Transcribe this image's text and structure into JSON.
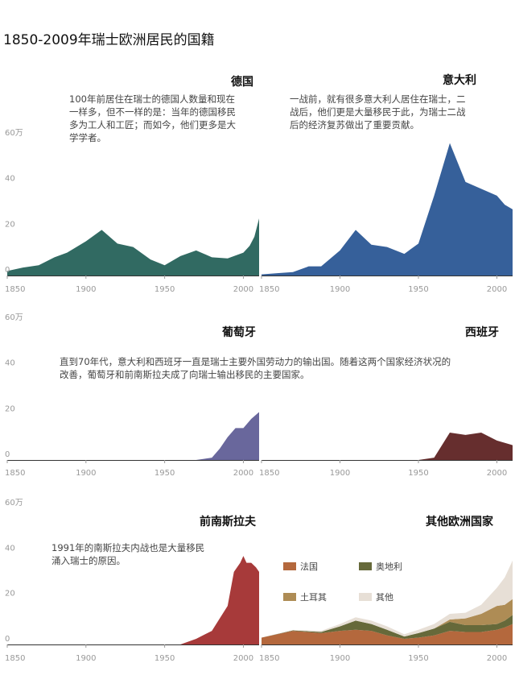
{
  "title": "1850-2009年瑞士欧洲居民的国籍",
  "colors": {
    "germany": "#316a62",
    "italy": "#36609a",
    "portugal": "#69679c",
    "spain": "#662e2e",
    "yugoslavia": "#a73a3a",
    "france": "#b4683d",
    "austria": "#66693a",
    "turkey": "#ae8c55",
    "others": "#e7dfd6"
  },
  "chart_data": [
    {
      "type": "area",
      "id": "germany",
      "title": "德国",
      "note": [
        "100年前居住在瑞士的德国人数量和现在",
        "一样多，但不一样的是：当年的德国移民",
        "多为工人和工匠；而如今，他们更多是大",
        "学学者。"
      ],
      "y_unit": "万",
      "yticks": [
        "0",
        "20",
        "40",
        "60万"
      ],
      "ylim": [
        0,
        60
      ],
      "xlim": [
        1850,
        2010
      ],
      "xticks": [
        "1850",
        "1900",
        "1950",
        "2000"
      ],
      "x": [
        1850,
        1860,
        1870,
        1880,
        1888,
        1900,
        1910,
        1920,
        1930,
        1941,
        1950,
        1960,
        1970,
        1980,
        1990,
        2000,
        2004,
        2007,
        2010
      ],
      "values": [
        2,
        3.5,
        4.5,
        8,
        10,
        15,
        20,
        14,
        12.5,
        7,
        4.5,
        8.5,
        11,
        8,
        7.5,
        10,
        13,
        17,
        25
      ]
    },
    {
      "type": "area",
      "id": "italy",
      "title": "意大利",
      "note": [
        "一战前，就有很多意大利人居住在瑞士，二",
        "战后，他们更是大量移民于此，为瑞士二战",
        "后的经济复苏做出了重要贡献。"
      ],
      "ylim": [
        0,
        60
      ],
      "xlim": [
        1850,
        2010
      ],
      "xticks": [
        "1850",
        "1900",
        "1950",
        "2000"
      ],
      "x": [
        1850,
        1860,
        1870,
        1880,
        1888,
        1900,
        1910,
        1920,
        1930,
        1941,
        1950,
        1960,
        1970,
        1980,
        1990,
        2000,
        2005,
        2010
      ],
      "values": [
        0.5,
        1,
        1.5,
        4,
        4,
        11,
        20,
        13.5,
        12.5,
        9.5,
        14,
        35,
        58,
        41,
        38,
        35,
        31,
        29
      ]
    },
    {
      "type": "area",
      "id": "portugal",
      "title": "葡萄牙",
      "yticks": [
        "0",
        "20",
        "40",
        "60万"
      ],
      "ylim": [
        0,
        60
      ],
      "xlim": [
        1850,
        2010
      ],
      "xticks": [
        "1850",
        "1900",
        "1950",
        "2000"
      ],
      "x": [
        1850,
        1970,
        1980,
        1985,
        1990,
        1995,
        2000,
        2005,
        2010
      ],
      "values": [
        0,
        0,
        1,
        5,
        10,
        14,
        14,
        18,
        21
      ]
    },
    {
      "type": "area",
      "id": "spain",
      "title": "西班牙",
      "note": [
        "直到70年代，意大利和西班牙一直是瑞士主要外国劳动力的输出国。随着这两个国家经济状况的",
        "改善，葡萄牙和前南斯拉夫成了向瑞士输出移民的主要国家。"
      ],
      "ylim": [
        0,
        60
      ],
      "xlim": [
        1850,
        2010
      ],
      "xticks": [
        "1850",
        "1900",
        "1950",
        "2000"
      ],
      "x": [
        1850,
        1950,
        1960,
        1970,
        1980,
        1990,
        2000,
        2010
      ],
      "values": [
        0,
        0,
        1,
        12,
        11,
        12,
        8.5,
        6.5
      ]
    },
    {
      "type": "area",
      "id": "yugoslavia",
      "title": "前南斯拉夫",
      "note": [
        "1991年的南斯拉夫内战也是大量移民",
        "涌入瑞士的原因。"
      ],
      "yticks": [
        "0",
        "20",
        "40",
        "60万"
      ],
      "ylim": [
        0,
        60
      ],
      "xlim": [
        1850,
        2010
      ],
      "xticks": [
        "1850",
        "1900",
        "1950",
        "2000"
      ],
      "x": [
        1850,
        1960,
        1970,
        1980,
        1990,
        1994,
        1998,
        2000,
        2002,
        2005,
        2008,
        2010
      ],
      "values": [
        0,
        0,
        2.5,
        6,
        17,
        32,
        36,
        39,
        36,
        36,
        34,
        32
      ]
    },
    {
      "type": "area",
      "stacked": true,
      "id": "others",
      "title": "其他欧洲国家",
      "ylim": [
        0,
        60
      ],
      "xlim": [
        1850,
        2010
      ],
      "xticks": [
        "1850",
        "1900",
        "1950",
        "2000"
      ],
      "x": [
        1850,
        1870,
        1888,
        1900,
        1910,
        1920,
        1930,
        1941,
        1950,
        1960,
        1970,
        1980,
        1990,
        2000,
        2005,
        2010
      ],
      "series": [
        {
          "name": "法国",
          "key": "france",
          "values": [
            3,
            6,
            5,
            6,
            6.5,
            6,
            4,
            2.5,
            3,
            4,
            6,
            5.5,
            5.5,
            6.5,
            7.5,
            9
          ]
        },
        {
          "name": "奥地利",
          "key": "austria",
          "values": [
            0,
            0.2,
            0.5,
            2,
            4,
            3,
            2.5,
            1,
            2,
            3,
            4,
            3,
            3,
            2.5,
            3,
            4
          ]
        },
        {
          "name": "土耳其",
          "key": "turkey",
          "values": [
            0,
            0,
            0,
            0,
            0,
            0,
            0,
            0,
            0,
            0,
            1,
            3,
            5,
            8,
            7,
            7
          ]
        },
        {
          "name": "其他",
          "key": "others",
          "values": [
            0,
            0.2,
            0.5,
            1,
            1.5,
            1.5,
            1.5,
            1,
            1.5,
            2,
            2.5,
            2.5,
            4,
            8,
            12,
            17
          ]
        }
      ]
    }
  ]
}
